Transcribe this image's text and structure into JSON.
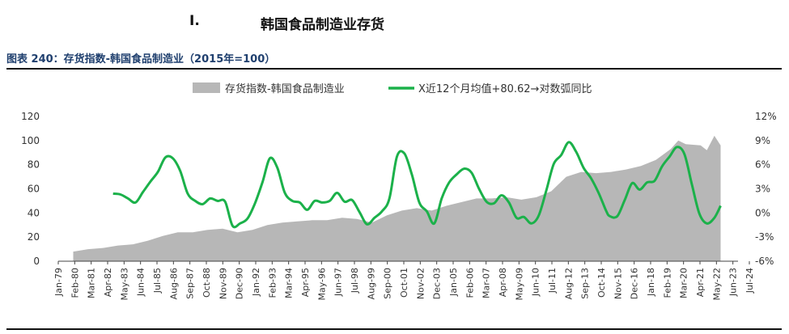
{
  "section": {
    "number": "I.",
    "title": "韩国食品制造业存货"
  },
  "figure_title": "图表 240：存货指数-韩国食品制造业（2015年=100）",
  "colors": {
    "area": "#b7b7b7",
    "line": "#1bb14a",
    "title": "#1f3f6e"
  },
  "chart_data": {
    "type": "area",
    "title": "图表 240：存货指数-韩国食品制造业（2015年=100）",
    "legend_position": "top",
    "x_ticks": [
      "Jan-79",
      "Feb-80",
      "Mar-81",
      "Apr-82",
      "May-83",
      "Jun-84",
      "Jul-85",
      "Aug-86",
      "Sep-87",
      "Oct-88",
      "Nov-89",
      "Dec-90",
      "Jan-92",
      "Feb-93",
      "Mar-94",
      "Apr-95",
      "May-96",
      "Jun-97",
      "Jul-98",
      "Aug-99",
      "Sep-00",
      "Oct-01",
      "Nov-02",
      "Dec-03",
      "Jan-05",
      "Feb-06",
      "Mar-07",
      "Apr-08",
      "May-09",
      "Jun-10",
      "Jul-11",
      "Aug-12",
      "Sep-13",
      "Oct-14",
      "Nov-15",
      "Dec-16",
      "Jan-18",
      "Feb-19",
      "Mar-20",
      "Apr-21",
      "May-22",
      "Jun-23",
      "Jul-24"
    ],
    "y_left": {
      "min": 0,
      "max": 120,
      "ticks": [
        "0",
        "20",
        "40",
        "60",
        "80",
        "100",
        "120"
      ]
    },
    "y_right": {
      "min": -6,
      "max": 12,
      "ticks": [
        "-6%",
        "-3%",
        "0%",
        "3%",
        "6%",
        "9%",
        "12%"
      ]
    },
    "series": [
      {
        "name": "存货指数-韩国食品制造业",
        "axis": "left",
        "type": "area",
        "points": [
          [
            "1980-01",
            8
          ],
          [
            "1981-01",
            10
          ],
          [
            "1982-01",
            11
          ],
          [
            "1983-01",
            13
          ],
          [
            "1984-01",
            14
          ],
          [
            "1985-01",
            17
          ],
          [
            "1986-01",
            21
          ],
          [
            "1987-01",
            24
          ],
          [
            "1988-01",
            24
          ],
          [
            "1989-01",
            26
          ],
          [
            "1990-01",
            27
          ],
          [
            "1991-01",
            24
          ],
          [
            "1992-01",
            26
          ],
          [
            "1993-01",
            30
          ],
          [
            "1994-01",
            32
          ],
          [
            "1995-01",
            33
          ],
          [
            "1996-01",
            34
          ],
          [
            "1997-01",
            34
          ],
          [
            "1998-01",
            36
          ],
          [
            "1999-01",
            35
          ],
          [
            "2000-01",
            32
          ],
          [
            "2001-01",
            38
          ],
          [
            "2002-01",
            42
          ],
          [
            "2003-01",
            44
          ],
          [
            "2004-01",
            42
          ],
          [
            "2005-01",
            46
          ],
          [
            "2006-01",
            49
          ],
          [
            "2007-01",
            52
          ],
          [
            "2008-01",
            52
          ],
          [
            "2009-01",
            53
          ],
          [
            "2010-01",
            51
          ],
          [
            "2011-01",
            53
          ],
          [
            "2012-01",
            58
          ],
          [
            "2013-01",
            70
          ],
          [
            "2014-01",
            74
          ],
          [
            "2015-01",
            73
          ],
          [
            "2016-01",
            74
          ],
          [
            "2017-01",
            76
          ],
          [
            "2018-01",
            79
          ],
          [
            "2019-01",
            84
          ],
          [
            "2020-01",
            93
          ],
          [
            "2020-07",
            100
          ],
          [
            "2021-01",
            97
          ],
          [
            "2022-01",
            96
          ],
          [
            "2022-06",
            92
          ],
          [
            "2022-12",
            104
          ],
          [
            "2023-05",
            96
          ]
        ]
      },
      {
        "name": "X近12个月均值+80.62→对数弧同比",
        "axis": "right",
        "type": "line",
        "points": [
          [
            "1982-09",
            2.4
          ],
          [
            "1983-03",
            2.3
          ],
          [
            "1983-09",
            1.8
          ],
          [
            "1984-03",
            1.3
          ],
          [
            "1984-09",
            2.6
          ],
          [
            "1985-03",
            3.9
          ],
          [
            "1985-09",
            5.1
          ],
          [
            "1986-03",
            6.9
          ],
          [
            "1986-09",
            6.8
          ],
          [
            "1987-03",
            5.2
          ],
          [
            "1987-09",
            2.4
          ],
          [
            "1988-03",
            1.5
          ],
          [
            "1988-09",
            1.1
          ],
          [
            "1989-03",
            1.8
          ],
          [
            "1989-09",
            1.5
          ],
          [
            "1990-03",
            1.4
          ],
          [
            "1990-09",
            -1.6
          ],
          [
            "1991-03",
            -1.3
          ],
          [
            "1991-09",
            -0.7
          ],
          [
            "1992-03",
            1.2
          ],
          [
            "1992-09",
            3.8
          ],
          [
            "1993-03",
            6.8
          ],
          [
            "1993-09",
            5.6
          ],
          [
            "1994-03",
            2.5
          ],
          [
            "1994-09",
            1.5
          ],
          [
            "1995-03",
            1.3
          ],
          [
            "1995-09",
            0.4
          ],
          [
            "1996-03",
            1.5
          ],
          [
            "1996-09",
            1.3
          ],
          [
            "1997-03",
            1.5
          ],
          [
            "1997-09",
            2.5
          ],
          [
            "1998-03",
            1.4
          ],
          [
            "1998-09",
            1.6
          ],
          [
            "1999-03",
            0.1
          ],
          [
            "1999-09",
            -1.4
          ],
          [
            "2000-03",
            -0.6
          ],
          [
            "2000-09",
            0.2
          ],
          [
            "2001-03",
            1.8
          ],
          [
            "2001-09",
            7.0
          ],
          [
            "2002-03",
            7.4
          ],
          [
            "2002-09",
            4.8
          ],
          [
            "2003-03",
            1.3
          ],
          [
            "2003-09",
            0.2
          ],
          [
            "2004-03",
            -1.3
          ],
          [
            "2004-09",
            1.8
          ],
          [
            "2005-03",
            3.8
          ],
          [
            "2005-09",
            4.8
          ],
          [
            "2006-03",
            5.5
          ],
          [
            "2006-09",
            5.0
          ],
          [
            "2007-03",
            3.0
          ],
          [
            "2007-09",
            1.4
          ],
          [
            "2008-03",
            1.2
          ],
          [
            "2008-09",
            2.2
          ],
          [
            "2009-03",
            1.3
          ],
          [
            "2009-09",
            -0.6
          ],
          [
            "2010-03",
            -0.5
          ],
          [
            "2010-09",
            -1.3
          ],
          [
            "2011-03",
            -0.3
          ],
          [
            "2011-09",
            2.8
          ],
          [
            "2012-03",
            6.1
          ],
          [
            "2012-09",
            7.2
          ],
          [
            "2013-03",
            8.8
          ],
          [
            "2013-09",
            7.6
          ],
          [
            "2014-03",
            5.6
          ],
          [
            "2014-09",
            4.3
          ],
          [
            "2015-03",
            2.5
          ],
          [
            "2015-09",
            0.3
          ],
          [
            "2015-12",
            -0.4
          ],
          [
            "2016-06",
            -0.4
          ],
          [
            "2016-12",
            1.6
          ],
          [
            "2017-06",
            3.7
          ],
          [
            "2017-12",
            2.9
          ],
          [
            "2018-06",
            3.8
          ],
          [
            "2018-12",
            4.0
          ],
          [
            "2019-06",
            5.8
          ],
          [
            "2019-12",
            7.0
          ],
          [
            "2020-06",
            8.2
          ],
          [
            "2020-12",
            7.3
          ],
          [
            "2021-06",
            3.5
          ],
          [
            "2021-12",
            -0.1
          ],
          [
            "2022-06",
            -1.3
          ],
          [
            "2022-12",
            -0.6
          ],
          [
            "2023-05",
            0.9
          ]
        ]
      }
    ]
  }
}
